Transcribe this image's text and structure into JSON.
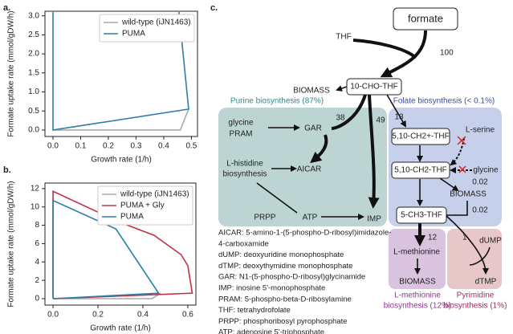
{
  "chart_data": [
    {
      "type": "line",
      "panel": "a.",
      "xlabel": "Growth rate (1/h)",
      "ylabel": "Formate uptake rate (mmol/gDW/h)",
      "xlim": [
        -0.029,
        0.522
      ],
      "ylim": [
        -0.17,
        3.12
      ],
      "xticks": [
        {
          "value": 0,
          "label": "0.0"
        },
        {
          "value": 0.1,
          "label": "0.1"
        },
        {
          "value": 0.2,
          "label": "0.2"
        },
        {
          "value": 0.3,
          "label": "0.3"
        },
        {
          "value": 0.4,
          "label": "0.4"
        },
        {
          "value": 0.5,
          "label": "0.5"
        }
      ],
      "yticks": [
        {
          "value": 0,
          "label": "0.0"
        },
        {
          "value": 0.5,
          "label": "0.5"
        },
        {
          "value": 1,
          "label": "1.0"
        },
        {
          "value": 1.5,
          "label": "1.5"
        },
        {
          "value": 2,
          "label": "2.0"
        },
        {
          "value": 2.5,
          "label": "2.5"
        },
        {
          "value": 3,
          "label": "3.0"
        }
      ],
      "legend": "upper right",
      "series": [
        {
          "name": "wild-type (iJN1463)",
          "color": "#aaaaaa",
          "x": [
            0,
            0.46,
            0.49
          ],
          "values": [
            0,
            0,
            0.55
          ]
        },
        {
          "name": "PUMA",
          "color": "#2b7ea6",
          "x": [
            0.455,
            0.49,
            0,
            0
          ],
          "values": [
            3.1,
            0.55,
            0,
            3.1
          ]
        }
      ]
    },
    {
      "type": "line",
      "panel": "b.",
      "xlabel": "Growth rate (1/h)",
      "ylabel": "Formate uptake rate (mmol/gDW/h)",
      "xlim": [
        -0.036,
        0.636
      ],
      "ylim": [
        -0.7,
        12.6
      ],
      "xticks": [
        {
          "value": 0,
          "label": "0.0"
        },
        {
          "value": 0.2,
          "label": "0.2"
        },
        {
          "value": 0.4,
          "label": "0.4"
        },
        {
          "value": 0.6,
          "label": "0.6"
        }
      ],
      "yticks": [
        0,
        2,
        4,
        6,
        8,
        10,
        12
      ],
      "legend": "upper right",
      "series": [
        {
          "name": "wild-type (iJN1463)",
          "color": "#aaaaaa",
          "x": [
            0,
            0.44,
            0.48
          ],
          "values": [
            0,
            0,
            0.6
          ]
        },
        {
          "name": "PUMA + Gly",
          "color": "#c2304a",
          "x": [
            0,
            0,
            0.3,
            0.45,
            0.57,
            0.6,
            0.62,
            0
          ],
          "values": [
            0,
            11.7,
            8.3,
            6.9,
            4.8,
            3.6,
            0.6,
            0
          ]
        },
        {
          "name": "PUMA",
          "color": "#2b7ea6",
          "x": [
            0,
            0,
            0.28,
            0.47,
            0
          ],
          "values": [
            0,
            10.7,
            7.6,
            0.6,
            0
          ]
        }
      ]
    }
  ],
  "diagram": {
    "panel": "c.",
    "formate": "formate",
    "thf": "THF",
    "flux_formate": "100",
    "biomass_top": "BIOMASS",
    "cho_thf": "10-CHO-THF",
    "purine_title": "Purine biosynthesis (87%)",
    "folate_title": "Folate biosynthesis (< 0.1%)",
    "glycine_pram": [
      "glycine",
      "PRAM"
    ],
    "gar": "GAR",
    "flux_gar": "38",
    "flux_imp": "49",
    "histidine": [
      "L-histidine",
      "biosynthesis"
    ],
    "aicar": "AICAR",
    "prpp": "PRPP",
    "atp": "ATP",
    "imp": "IMP",
    "flux_folate": "13",
    "ch2plus_thf": "5,10-CH2+-THF",
    "ch2_thf": "5,10-CH2-THF",
    "serine": "L-serine",
    "glycine": "glycine",
    "biomass_right": "BIOMASS",
    "flux_glycine": "0.02",
    "flux_biomass": "0.02",
    "ch3_thf": "5-CH3-THF",
    "flux_met": "12",
    "methionine": "L-methionine",
    "biomass_bottom": "BIOMASS",
    "flux_dtmp": "1",
    "dump": "dUMP",
    "dtmp": "dTMP",
    "met_title": [
      "L-methionine",
      "biosynthesis (12%)"
    ],
    "pyr_title": [
      "Pyrimidine",
      "biosynthesis (1%)"
    ],
    "abbreviations": [
      "AICAR: 5-amino-1-(5-phospho-D-ribosyl)imidazole-",
      "4-carboxamide",
      "dUMP: deoxyuridine monophosphate",
      "dTMP: deoxythymidine monophosphate",
      "GAR: N1-(5-phospho-D-ribosyl)glycinamide",
      "IMP: inosine 5'-monophosphate",
      "PRAM: 5-phospho-beta-D-ribosylamine",
      "THF: tetrahydrofolate",
      "PRPP: phosphoribosyl pyrophosphate",
      "ATP: adenosine 5'-triphosphate"
    ]
  }
}
